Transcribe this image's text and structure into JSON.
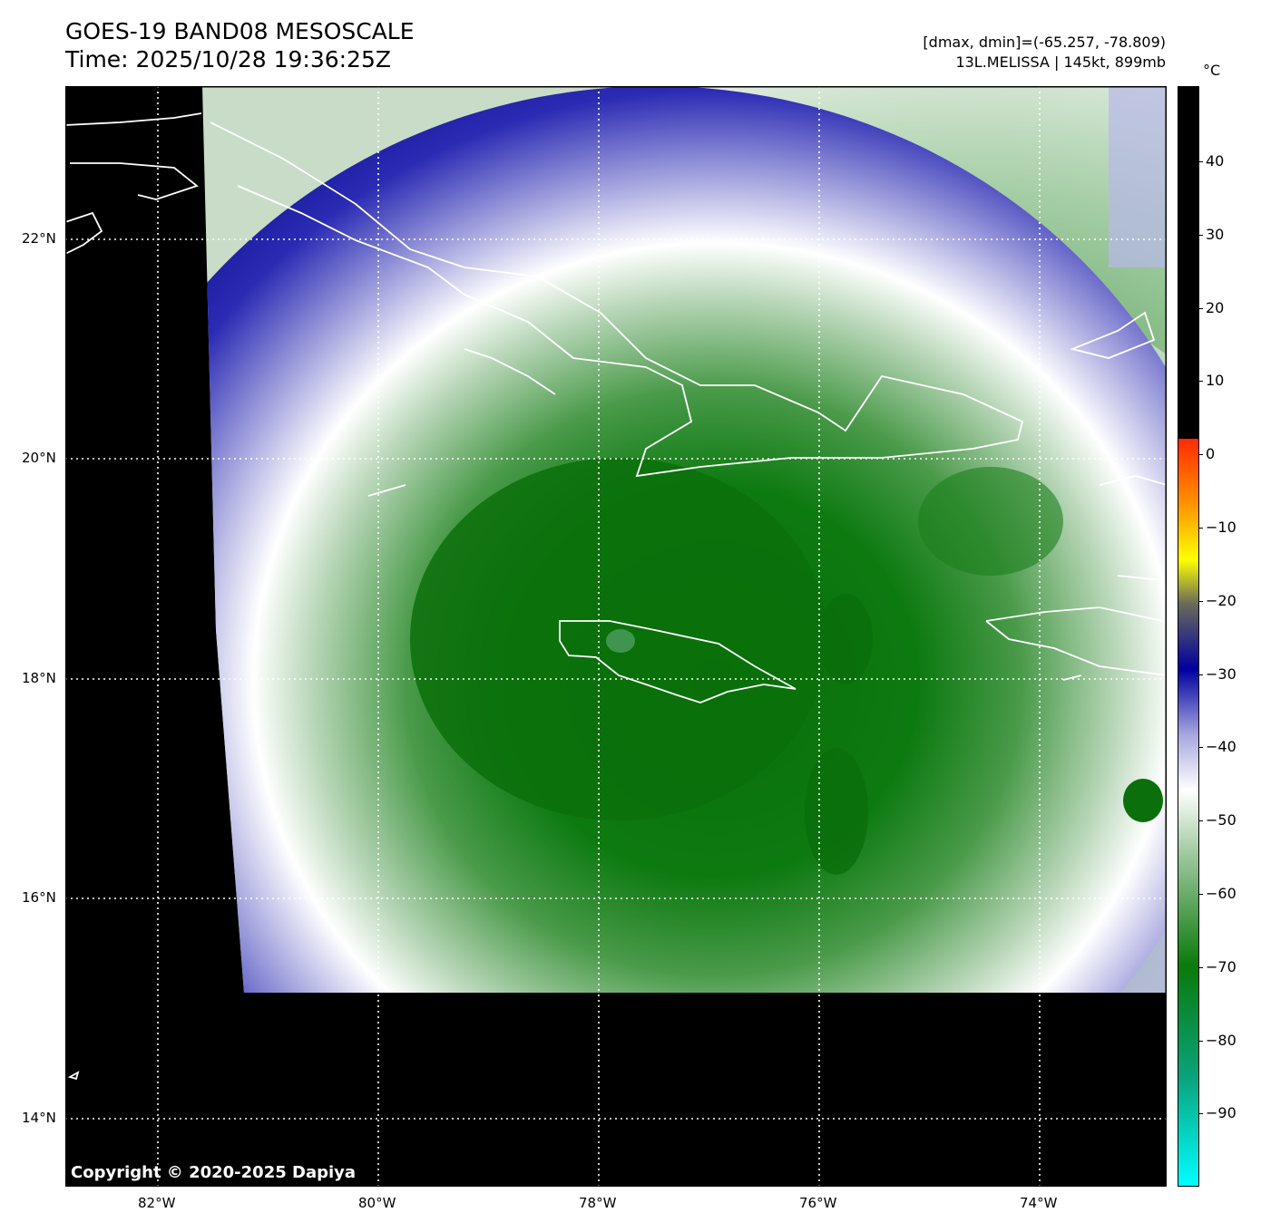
{
  "header": {
    "title_line1": "GOES-19 BAND08 MESOSCALE",
    "title_line2": "Time: 2025/10/28 19:36:25Z",
    "range_text": "[dmax, dmin]=(-65.257, -78.809)",
    "storm_text": "13L.MELISSA | 145kt, 899mb"
  },
  "map": {
    "lon_labels": [
      "82°W",
      "80°W",
      "78°W",
      "76°W",
      "74°W"
    ],
    "lat_labels": [
      "22°N",
      "20°N",
      "18°N",
      "16°N",
      "14°N"
    ],
    "copyright": "Copyright © 2020-2025 Dapiya"
  },
  "colorbar": {
    "unit": "°C",
    "ticks": [
      "40",
      "30",
      "20",
      "10",
      "0",
      "−10",
      "−20",
      "−30",
      "−40",
      "−50",
      "−60",
      "−70",
      "−80",
      "−90"
    ],
    "colors": {
      "warm": "#000000",
      "red": "#ff2a00",
      "orange": "#ff9400",
      "yellow": "#ffff00",
      "gray": "#6b6b5a",
      "blue": "#0000a0",
      "lavender": "#a8a8e0",
      "white": "#ffffff",
      "light_green": "#9cc79c",
      "green": "#0a7a0a",
      "teal": "#0aa27a",
      "cyan": "#00ffff"
    }
  }
}
